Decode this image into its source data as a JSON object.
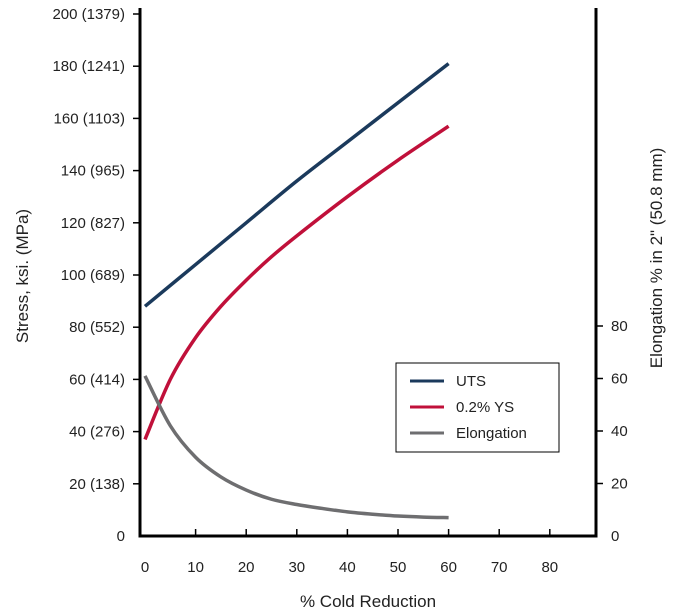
{
  "chart_data": {
    "type": "line",
    "title": "",
    "xlabel": "% Cold Reduction",
    "ylabel_left": "Stress, ksi. (MPa)",
    "ylabel_right": "Elongation % in 2\" (50.8 mm)",
    "xlim": [
      0,
      90
    ],
    "ylim_left": [
      0,
      200
    ],
    "ylim_right": [
      0,
      100
    ],
    "x_ticks": [
      "0",
      "10",
      "20",
      "30",
      "40",
      "50",
      "60",
      "70",
      "80"
    ],
    "y_left_ticks": [
      {
        "value": 0,
        "label": "0"
      },
      {
        "value": 20,
        "label": "20   (138)"
      },
      {
        "value": 40,
        "label": "40   (276)"
      },
      {
        "value": 60,
        "label": "60   (414)"
      },
      {
        "value": 80,
        "label": "80   (552)"
      },
      {
        "value": 100,
        "label": "100   (689)"
      },
      {
        "value": 120,
        "label": "120   (827)"
      },
      {
        "value": 140,
        "label": "140   (965)"
      },
      {
        "value": 160,
        "label": "160 (1103)"
      },
      {
        "value": 180,
        "label": "180 (1241)"
      },
      {
        "value": 200,
        "label": "200 (1379)"
      }
    ],
    "y_right_ticks": [
      {
        "value": 0,
        "label": "0"
      },
      {
        "value": 20,
        "label": "20"
      },
      {
        "value": 40,
        "label": "40"
      },
      {
        "value": 60,
        "label": "60"
      },
      {
        "value": 80,
        "label": "80"
      }
    ],
    "grid": false,
    "legend_position": "lower-right",
    "series": [
      {
        "name": "UTS",
        "axis": "left",
        "color": "#1b3a5c",
        "x": [
          0,
          10,
          20,
          30,
          40,
          50,
          60
        ],
        "y": [
          88,
          104,
          120,
          136,
          151,
          166,
          181
        ]
      },
      {
        "name": "0.2% YS",
        "axis": "left",
        "color": "#c0103a",
        "x": [
          0,
          5,
          10,
          15,
          20,
          25,
          30,
          40,
          50,
          60
        ],
        "y": [
          37,
          60,
          76,
          88,
          98,
          107,
          115,
          130,
          144,
          157
        ]
      },
      {
        "name": "Elongation",
        "axis": "right",
        "color": "#6e6e70",
        "x": [
          0,
          5,
          10,
          15,
          20,
          25,
          30,
          35,
          40,
          45,
          50,
          55,
          60
        ],
        "y": [
          61,
          42,
          30,
          22.5,
          17.5,
          14,
          12,
          10.5,
          9.2,
          8.3,
          7.6,
          7.2,
          7
        ]
      }
    ]
  }
}
